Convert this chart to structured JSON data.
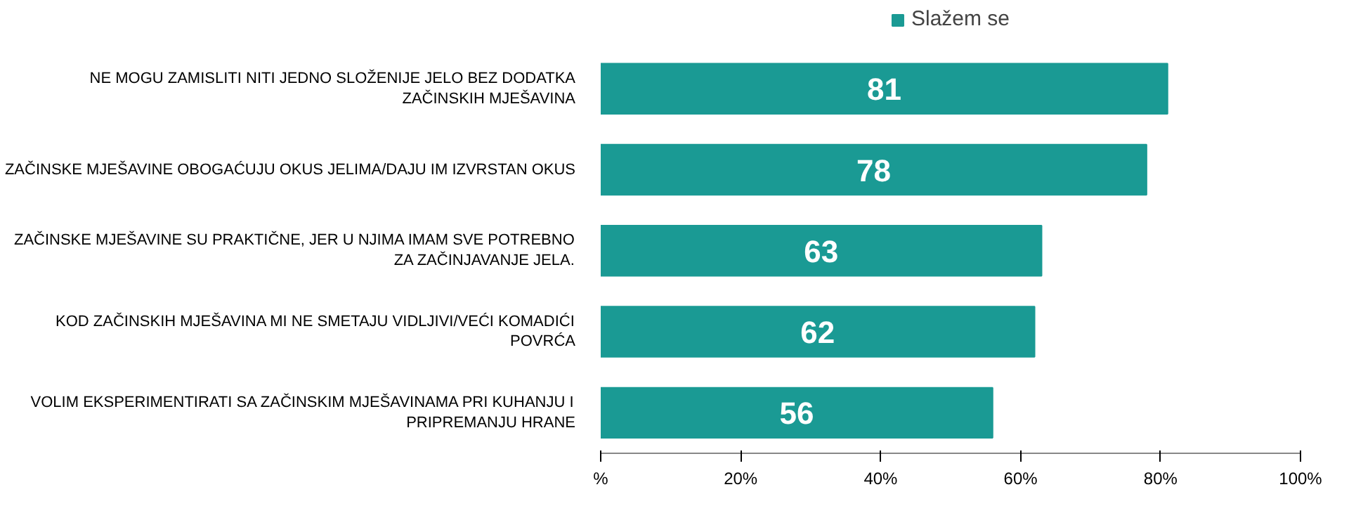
{
  "chart_data": {
    "type": "bar",
    "orientation": "horizontal",
    "categories": [
      "NE MOGU ZAMISLITI NITI JEDNO SLOŽENIJE JELO BEZ DODATKA ZAČINSKIH MJEŠAVINA",
      "ZAČINSKE MJEŠAVINE OBOGAĆUJU OKUS JELIMA/DAJU IM IZVRSTAN OKUS",
      "ZAČINSKE MJEŠAVINE SU PRAKTIČNE, JER U NJIMA IMAM SVE POTREBNO ZA ZAČINJAVANJE JELA.",
      "KOD ZAČINSKIH MJEŠAVINA MI NE SMETAJU VIDLJIVI/VEĆI KOMADIĆI POVRĆA",
      "VOLIM EKSPERIMENTIRATI SA ZAČINSKIM MJEŠAVINAMA PRI KUHANJU I PRIPREMANJU HRANE"
    ],
    "series": [
      {
        "name": "Slažem se",
        "color": "#1a9a94",
        "values": [
          81,
          78,
          63,
          62,
          56
        ]
      }
    ],
    "xlim": [
      0,
      100
    ],
    "xticks": [
      {
        "value": 0,
        "label": "%"
      },
      {
        "value": 20,
        "label": "20%"
      },
      {
        "value": 40,
        "label": "40%"
      },
      {
        "value": 60,
        "label": "60%"
      },
      {
        "value": 80,
        "label": "80%"
      },
      {
        "value": 100,
        "label": "100%"
      }
    ],
    "data_labels": true,
    "legend": "top",
    "grid": false
  }
}
